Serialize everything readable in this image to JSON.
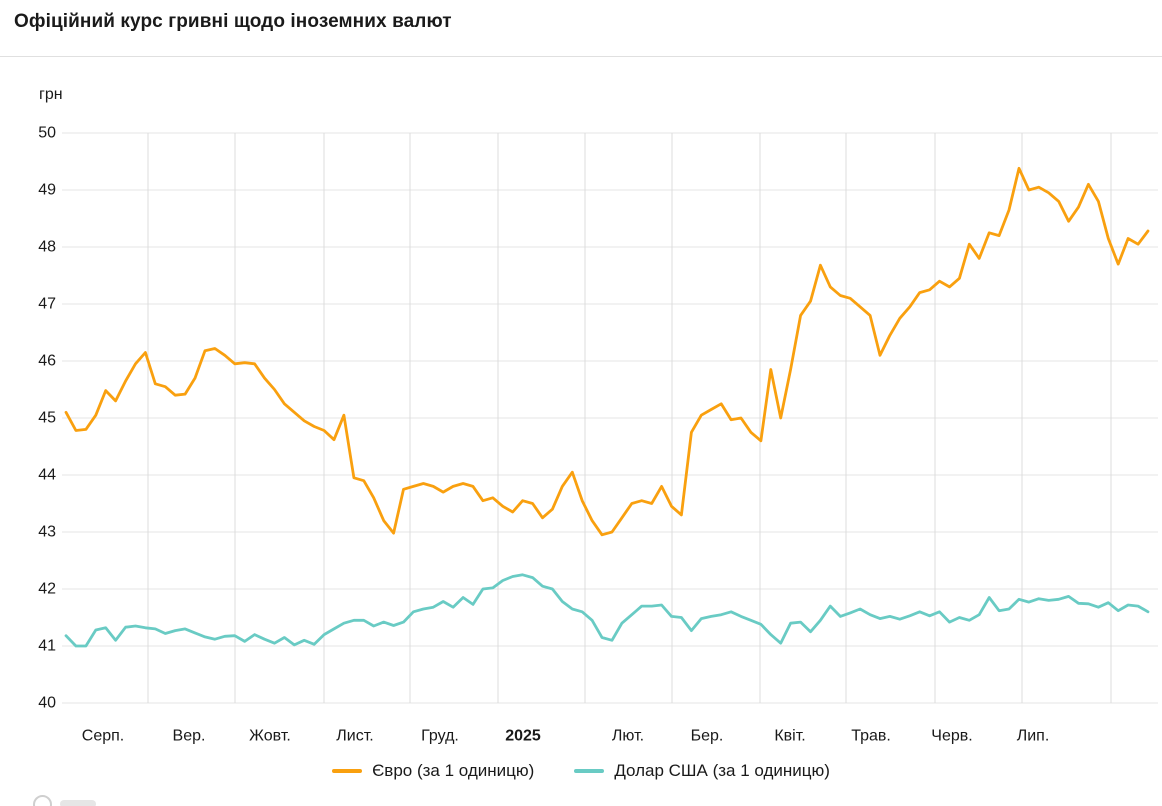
{
  "header": {
    "title": "Офіційний курс гривні щодо іноземних валют"
  },
  "chart_data": {
    "type": "line",
    "title": "Офіційний курс гривні щодо іноземних валют",
    "grid": true,
    "legend_position": "bottom",
    "y_axis": {
      "unit_label": "грн",
      "min": 40,
      "max": 50,
      "tick_step": 1,
      "ticks": [
        50,
        49,
        48,
        47,
        46,
        45,
        44,
        43,
        42,
        41,
        40
      ]
    },
    "x_axis": {
      "tick_labels": [
        "Серп.",
        "Вер.",
        "Жовт.",
        "Лист.",
        "Груд.",
        "2025",
        "Лют.",
        "Бер.",
        "Квіт.",
        "Трав.",
        "Черв.",
        "Лип."
      ],
      "bold_tick": "2025"
    },
    "series": [
      {
        "key": "euro",
        "name": "Євро (за 1 одиницю)",
        "color": "#F9A00F",
        "values": [
          45.1,
          44.78,
          44.8,
          45.05,
          45.48,
          45.3,
          45.65,
          45.95,
          46.15,
          45.6,
          45.55,
          45.4,
          45.42,
          45.7,
          46.18,
          46.22,
          46.1,
          45.95,
          45.97,
          45.95,
          45.7,
          45.5,
          45.25,
          45.1,
          44.95,
          44.85,
          44.78,
          44.62,
          45.05,
          43.95,
          43.9,
          43.6,
          43.2,
          42.98,
          43.75,
          43.8,
          43.85,
          43.8,
          43.7,
          43.8,
          43.85,
          43.8,
          43.55,
          43.6,
          43.45,
          43.35,
          43.55,
          43.5,
          43.25,
          43.4,
          43.8,
          44.05,
          43.55,
          43.2,
          42.95,
          43.0,
          43.25,
          43.5,
          43.55,
          43.5,
          43.8,
          43.45,
          43.3,
          44.75,
          45.05,
          45.15,
          45.25,
          44.97,
          45.0,
          44.75,
          44.6,
          45.85,
          45.0,
          45.85,
          46.8,
          47.05,
          47.68,
          47.3,
          47.15,
          47.1,
          46.95,
          46.8,
          46.1,
          46.45,
          46.75,
          46.95,
          47.2,
          47.25,
          47.4,
          47.3,
          47.45,
          48.05,
          47.8,
          48.25,
          48.2,
          48.65,
          49.38,
          49.0,
          49.05,
          48.95,
          48.8,
          48.45,
          48.7,
          49.1,
          48.8,
          48.15,
          47.7,
          48.15,
          48.05,
          48.28
        ]
      },
      {
        "key": "usd",
        "name": "Долар США (за 1 одиницю)",
        "color": "#69CBC4",
        "values": [
          41.18,
          41.0,
          41.0,
          41.28,
          41.32,
          41.1,
          41.33,
          41.35,
          41.32,
          41.3,
          41.22,
          41.27,
          41.3,
          41.23,
          41.16,
          41.12,
          41.17,
          41.18,
          41.08,
          41.2,
          41.12,
          41.05,
          41.15,
          41.02,
          41.1,
          41.03,
          41.2,
          41.3,
          41.4,
          41.45,
          41.45,
          41.35,
          41.42,
          41.36,
          41.42,
          41.6,
          41.65,
          41.68,
          41.78,
          41.68,
          41.85,
          41.73,
          42.0,
          42.02,
          42.15,
          42.22,
          42.25,
          42.2,
          42.05,
          42.0,
          41.78,
          41.65,
          41.6,
          41.45,
          41.15,
          41.1,
          41.4,
          41.55,
          41.7,
          41.7,
          41.72,
          41.52,
          41.5,
          41.27,
          41.48,
          41.52,
          41.55,
          41.6,
          41.52,
          41.45,
          41.38,
          41.2,
          41.05,
          41.4,
          41.42,
          41.25,
          41.45,
          41.7,
          41.52,
          41.58,
          41.65,
          41.55,
          41.48,
          41.52,
          41.47,
          41.53,
          41.6,
          41.53,
          41.6,
          41.42,
          41.5,
          41.45,
          41.55,
          41.85,
          41.62,
          41.65,
          41.82,
          41.77,
          41.83,
          41.8,
          41.82,
          41.87,
          41.75,
          41.74,
          41.68,
          41.76,
          41.62,
          41.72,
          41.7,
          41.6
        ]
      }
    ]
  }
}
